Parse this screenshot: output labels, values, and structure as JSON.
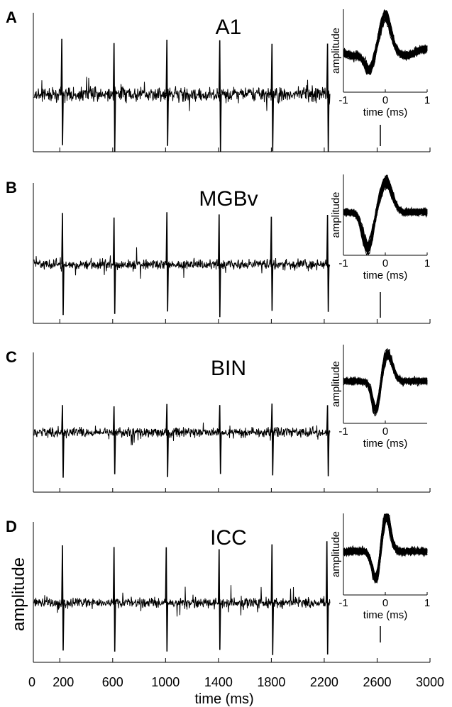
{
  "chart_data": {
    "type": "line",
    "xlabel": "time (ms)",
    "ylabel": "amplitude",
    "xlim": [
      0,
      3000
    ],
    "x_ticks": [
      0,
      200,
      600,
      1000,
      1400,
      1800,
      2200,
      2600,
      3000
    ],
    "x_tick_labels": [
      "0",
      "200",
      "600",
      "1000",
      "1400",
      "1800",
      "2200",
      "2600",
      "3000"
    ],
    "inset_xlabel": "time (ms)",
    "inset_ylabel": "amplitude",
    "inset_xlim": [
      -1,
      1
    ],
    "panels": [
      {
        "label": "A",
        "title": "A1",
        "spike_times": [
          215,
          610,
          1010,
          1410,
          1805,
          2225
        ],
        "inset_x_tick_labels": [
          "-1",
          "0",
          "1"
        ]
      },
      {
        "label": "B",
        "title": "MGBv",
        "spike_times": [
          220,
          610,
          1010,
          1405,
          1800,
          2225
        ],
        "inset_x_tick_labels": [
          "-1",
          "0",
          "1"
        ]
      },
      {
        "label": "C",
        "title": "BIN",
        "spike_times": [
          220,
          610,
          1010,
          1410,
          1805,
          2225
        ],
        "inset_x_tick_labels": [
          "-1",
          "0"
        ]
      },
      {
        "label": "D",
        "title": "ICC",
        "spike_times": [
          220,
          610,
          1005,
          1405,
          1805,
          2220
        ],
        "inset_x_tick_labels": [
          "-1",
          "0",
          "1"
        ]
      }
    ]
  }
}
